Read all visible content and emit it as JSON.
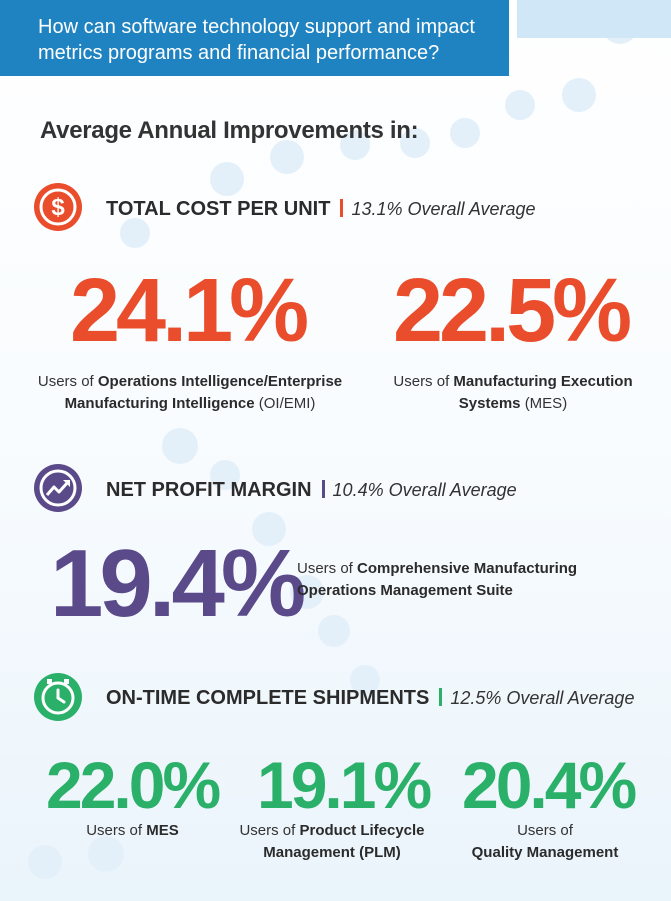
{
  "header": {
    "question": "How can software technology support and impact metrics programs and financial performance?"
  },
  "subtitle": "Average Annual Improvements in:",
  "colors": {
    "header_bg": "#1f83c2",
    "cost": "#ea4d2c",
    "profit": "#5a4a8a",
    "shipments": "#2bb06a"
  },
  "sections": {
    "cost": {
      "icon": "dollar-icon",
      "title": "TOTAL COST PER UNIT",
      "average": "13.1% Overall Average",
      "stats": [
        {
          "value": "24.1%",
          "caption_prefix": "Users of",
          "caption_bold": "Operations Intelligence/Enterprise Manufacturing Intelligence",
          "caption_suffix": "(OI/EMI)"
        },
        {
          "value": "22.5%",
          "caption_prefix": "Users of",
          "caption_bold": "Manufacturing Execution Systems",
          "caption_suffix": "(MES)"
        }
      ]
    },
    "profit": {
      "icon": "trend-up-icon",
      "title": "NET PROFIT MARGIN",
      "average": "10.4% Overall Average",
      "stats": [
        {
          "value": "19.4%",
          "caption_prefix": "Users of",
          "caption_bold": "Comprehensive Manufacturing Operations Management Suite"
        }
      ]
    },
    "shipments": {
      "icon": "clock-icon",
      "title": "ON-TIME COMPLETE SHIPMENTS",
      "average": "12.5% Overall Average",
      "stats": [
        {
          "value": "22.0%",
          "caption_prefix": "Users of",
          "caption_bold": "MES"
        },
        {
          "value": "19.1%",
          "caption_prefix": "Users of",
          "caption_bold": "Product Lifecycle Management (PLM)"
        },
        {
          "value": "20.4%",
          "caption_prefix": "Users of",
          "caption_bold": "Quality Management"
        }
      ]
    }
  }
}
